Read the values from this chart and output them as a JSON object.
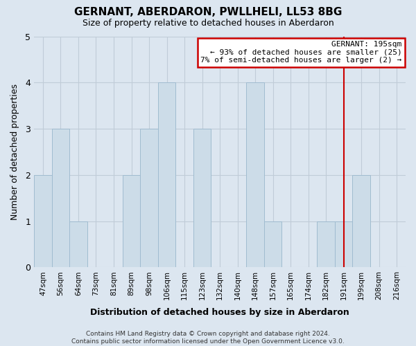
{
  "title": "GERNANT, ABERDARON, PWLLHELI, LL53 8BG",
  "subtitle": "Size of property relative to detached houses in Aberdaron",
  "xlabel": "Distribution of detached houses by size in Aberdaron",
  "ylabel": "Number of detached properties",
  "footer_line1": "Contains HM Land Registry data © Crown copyright and database right 2024.",
  "footer_line2": "Contains public sector information licensed under the Open Government Licence v3.0.",
  "bin_labels": [
    "47sqm",
    "56sqm",
    "64sqm",
    "73sqm",
    "81sqm",
    "89sqm",
    "98sqm",
    "106sqm",
    "115sqm",
    "123sqm",
    "132sqm",
    "140sqm",
    "148sqm",
    "157sqm",
    "165sqm",
    "174sqm",
    "182sqm",
    "191sqm",
    "199sqm",
    "208sqm",
    "216sqm"
  ],
  "bar_values": [
    2,
    3,
    1,
    0,
    0,
    2,
    3,
    4,
    0,
    3,
    0,
    0,
    4,
    1,
    0,
    0,
    1,
    1,
    2,
    0,
    0
  ],
  "bar_color": "#ccdce8",
  "bar_edge_color": "#a0bcd0",
  "grid_color": "#c0ccd8",
  "bg_color": "#dce6f0",
  "property_line_x": 17.5,
  "property_label": "GERNANT: 195sqm",
  "annotation_line1": "← 93% of detached houses are smaller (25)",
  "annotation_line2": "7% of semi-detached houses are larger (2) →",
  "annotation_box_color": "#ffffff",
  "annotation_border_color": "#cc0000",
  "red_line_color": "#cc0000",
  "ylim": [
    0,
    5
  ],
  "yticks": [
    0,
    1,
    2,
    3,
    4,
    5
  ]
}
